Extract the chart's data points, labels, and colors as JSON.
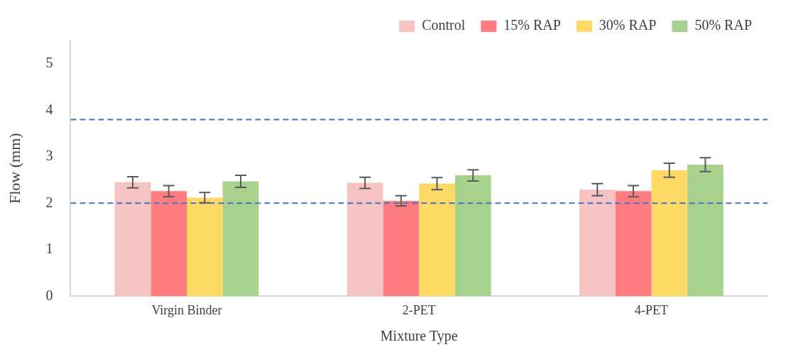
{
  "chart_data": {
    "type": "bar",
    "xlabel": "Mixture Type",
    "ylabel": "Flow (mm)",
    "categories": [
      "Virgin Binder",
      "2-PET",
      "4-PET"
    ],
    "series": [
      {
        "name": "Control",
        "color": "#f6c3c3",
        "values": [
          2.45,
          2.44,
          2.29
        ],
        "errors": [
          0.12,
          0.12,
          0.13
        ]
      },
      {
        "name": "15% RAP",
        "color": "#ff7c80",
        "values": [
          2.26,
          2.05,
          2.26
        ],
        "errors": [
          0.12,
          0.11,
          0.12
        ]
      },
      {
        "name": "30% RAP",
        "color": "#ffd966",
        "values": [
          2.12,
          2.42,
          2.71
        ],
        "errors": [
          0.11,
          0.13,
          0.15
        ]
      },
      {
        "name": "50% RAP",
        "color": "#a9d18e",
        "values": [
          2.47,
          2.6,
          2.83
        ],
        "errors": [
          0.13,
          0.12,
          0.15
        ]
      }
    ],
    "ylim": [
      0,
      5.5
    ],
    "yticks": [
      0,
      1,
      2,
      3,
      4,
      5
    ],
    "grid": false,
    "legend": "top right",
    "ref_lines": [
      {
        "axis": "y",
        "value": 3.8,
        "color": "#4472c4",
        "line_style": "dashed"
      },
      {
        "axis": "y",
        "value": 2,
        "color": "#4472c4",
        "line_style": "dashed"
      }
    ]
  }
}
